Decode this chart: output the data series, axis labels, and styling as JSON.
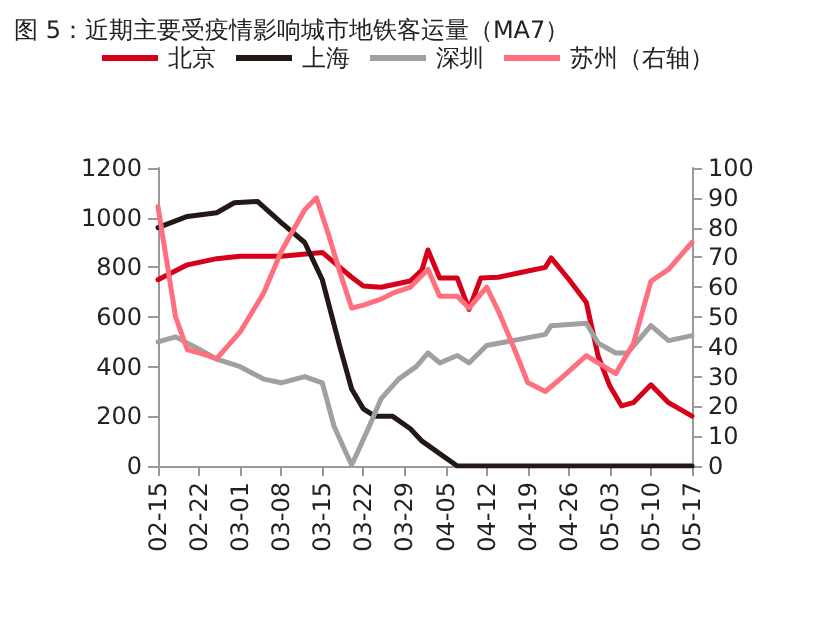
{
  "chart_data": {
    "type": "line",
    "title": "图 5：近期主要受疫情影响城市地铁客运量（MA7）",
    "xlim": [
      "--02-15",
      "--05-17"
    ],
    "xticks": [
      {
        "value": "--02-15",
        "label": "02-15"
      },
      {
        "value": "--02-22",
        "label": "02-22"
      },
      {
        "value": "--03-01",
        "label": "03-01"
      },
      {
        "value": "--03-08",
        "label": "03-08"
      },
      {
        "value": "--03-15",
        "label": "03-15"
      },
      {
        "value": "--03-22",
        "label": "03-22"
      },
      {
        "value": "--03-29",
        "label": "03-29"
      },
      {
        "value": "--04-05",
        "label": "04-05"
      },
      {
        "value": "--04-12",
        "label": "04-12"
      },
      {
        "value": "--04-19",
        "label": "04-19"
      },
      {
        "value": "--04-26",
        "label": "04-26"
      },
      {
        "value": "--05-03",
        "label": "05-03"
      },
      {
        "value": "--05-10",
        "label": "05-10"
      },
      {
        "value": "--05-17",
        "label": "05-17"
      }
    ],
    "ylim": [
      0,
      1200
    ],
    "yticks": [
      0,
      200,
      400,
      600,
      800,
      1000,
      1200
    ],
    "y2lim": [
      0,
      100
    ],
    "y2ticks": [
      0,
      10,
      20,
      30,
      40,
      50,
      60,
      70,
      80,
      90,
      100
    ],
    "grid": false,
    "legend": "top",
    "marker": "none",
    "line_style": "solid",
    "series": [
      {
        "name": "北京",
        "color": "#d7001a",
        "x": [
          "--02-15",
          "--02-20",
          "--02-25",
          "--03-01",
          "--03-08",
          "--03-15",
          "--03-18",
          "--03-20",
          "--03-22",
          "--03-25",
          "--03-28",
          "--03-30",
          "--04-01",
          "--04-02",
          "--04-04",
          "--04-07",
          "--04-09",
          "--04-11",
          "--04-14",
          "--04-17",
          "--04-22",
          "--04-23",
          "--04-26",
          "--04-29",
          "--05-01",
          "--05-03",
          "--05-05",
          "--05-07",
          "--05-10",
          "--05-13",
          "--05-17"
        ],
        "values": [
          750,
          810,
          835,
          845,
          845,
          860,
          800,
          760,
          725,
          720,
          735,
          745,
          790,
          870,
          757,
          757,
          631,
          757,
          760,
          775,
          800,
          838,
          752,
          658,
          443,
          322,
          242,
          255,
          327,
          255,
          201
        ]
      },
      {
        "name": "上海",
        "color": "#231815",
        "x": [
          "--02-15",
          "--02-20",
          "--02-25",
          "--02-28",
          "--03-04",
          "--03-08",
          "--03-12",
          "--03-15",
          "--03-18",
          "--03-20",
          "--03-22",
          "--03-24",
          "--03-27",
          "--03-30",
          "--04-01",
          "--04-04",
          "--04-07",
          "--05-17"
        ],
        "values": [
          960,
          1005,
          1020,
          1060,
          1065,
          980,
          900,
          750,
          480,
          310,
          230,
          200,
          200,
          150,
          100,
          50,
          0,
          0
        ]
      },
      {
        "name": "深圳",
        "color": "#a0a0a0",
        "x": [
          "--02-15",
          "--02-18",
          "--02-22",
          "--02-25",
          "--03-01",
          "--03-05",
          "--03-08",
          "--03-12",
          "--03-15",
          "--03-17",
          "--03-19",
          "--03-20",
          "--03-21",
          "--03-23",
          "--03-25",
          "--03-28",
          "--03-31",
          "--04-02",
          "--04-04",
          "--04-07",
          "--04-09",
          "--04-12",
          "--04-22",
          "--04-23",
          "--04-29",
          "--05-01",
          "--05-04",
          "--05-06",
          "--05-10",
          "--05-13",
          "--05-17"
        ],
        "values": [
          500,
          520,
          470,
          430,
          400,
          350,
          335,
          360,
          335,
          160,
          55,
          5,
          55,
          160,
          270,
          350,
          400,
          455,
          415,
          445,
          415,
          485,
          530,
          565,
          575,
          495,
          455,
          455,
          565,
          505,
          525
        ]
      },
      {
        "name": "苏州（右轴）",
        "color": "#ff6f7d",
        "axis": "y2",
        "x": [
          "--02-15",
          "--02-18",
          "--02-20",
          "--02-22",
          "--02-25",
          "--03-01",
          "--03-05",
          "--03-08",
          "--03-12",
          "--03-14",
          "--03-16",
          "--03-18",
          "--03-20",
          "--03-22",
          "--03-25",
          "--03-27",
          "--03-30",
          "--04-02",
          "--04-04",
          "--04-07",
          "--04-09",
          "--04-12",
          "--04-14",
          "--04-17",
          "--04-19",
          "--04-22",
          "--04-25",
          "--04-29",
          "--05-04",
          "--05-07",
          "--05-10",
          "--05-13",
          "--05-17"
        ],
        "values": [
          87,
          50,
          39,
          38,
          36,
          45,
          58,
          72,
          86,
          90,
          78,
          65,
          53,
          54,
          56,
          58,
          60,
          66,
          57,
          57,
          53,
          60,
          52,
          38,
          28,
          25,
          30,
          37,
          31,
          41,
          62,
          66,
          75
        ]
      }
    ]
  }
}
